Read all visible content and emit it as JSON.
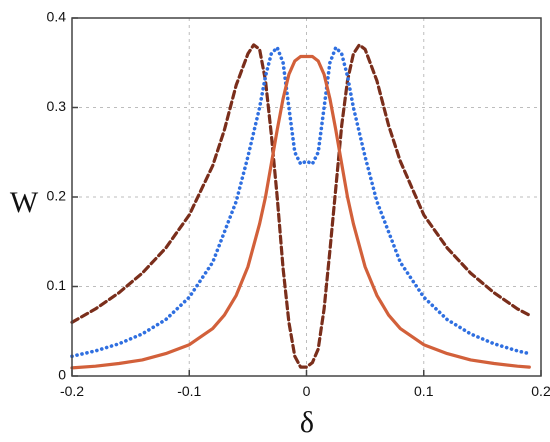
{
  "chart_data": {
    "type": "line",
    "title": "",
    "xlabel": "δ",
    "ylabel": "W",
    "xlim": [
      -0.2,
      0.2
    ],
    "ylim": [
      0,
      0.4
    ],
    "x_ticks": [
      -0.2,
      -0.1,
      0,
      0.1,
      0.2
    ],
    "x_tick_labels": [
      "-0.2",
      "-0.1",
      "0",
      "0.1",
      "0.2"
    ],
    "y_ticks": [
      0,
      0.1,
      0.2,
      0.3,
      0.4
    ],
    "y_tick_labels": [
      "0",
      "0.1",
      "0.2",
      "0.3",
      "0.4"
    ],
    "grid": true,
    "legend": "none",
    "series": [
      {
        "style": "dashed",
        "color": "#7a2e1b",
        "x": [
          -0.2,
          -0.18,
          -0.16,
          -0.14,
          -0.12,
          -0.1,
          -0.08,
          -0.07,
          -0.06,
          -0.05,
          -0.045,
          -0.04,
          -0.035,
          -0.03,
          -0.025,
          -0.02,
          -0.015,
          -0.01,
          -0.005,
          0,
          0.005,
          0.01,
          0.015,
          0.02,
          0.025,
          0.03,
          0.035,
          0.04,
          0.045,
          0.05,
          0.06,
          0.07,
          0.08,
          0.1,
          0.12,
          0.14,
          0.16,
          0.18,
          0.19
        ],
        "y": [
          0.06,
          0.075,
          0.093,
          0.115,
          0.143,
          0.18,
          0.235,
          0.275,
          0.325,
          0.36,
          0.37,
          0.365,
          0.33,
          0.27,
          0.2,
          0.12,
          0.06,
          0.022,
          0.01,
          0.01,
          0.015,
          0.03,
          0.075,
          0.14,
          0.21,
          0.28,
          0.33,
          0.36,
          0.37,
          0.365,
          0.33,
          0.28,
          0.24,
          0.18,
          0.143,
          0.115,
          0.093,
          0.075,
          0.068
        ]
      },
      {
        "style": "dotted",
        "color": "#2f6fe0",
        "x": [
          -0.2,
          -0.18,
          -0.16,
          -0.14,
          -0.12,
          -0.1,
          -0.08,
          -0.06,
          -0.05,
          -0.04,
          -0.035,
          -0.03,
          -0.025,
          -0.02,
          -0.015,
          -0.01,
          -0.005,
          0,
          0.005,
          0.01,
          0.015,
          0.02,
          0.025,
          0.03,
          0.035,
          0.04,
          0.05,
          0.06,
          0.08,
          0.1,
          0.12,
          0.14,
          0.16,
          0.18,
          0.19
        ],
        "y": [
          0.022,
          0.028,
          0.036,
          0.047,
          0.063,
          0.088,
          0.127,
          0.195,
          0.245,
          0.3,
          0.335,
          0.36,
          0.367,
          0.35,
          0.3,
          0.25,
          0.237,
          0.24,
          0.237,
          0.25,
          0.3,
          0.35,
          0.367,
          0.36,
          0.335,
          0.3,
          0.245,
          0.195,
          0.127,
          0.088,
          0.063,
          0.047,
          0.036,
          0.028,
          0.025
        ]
      },
      {
        "style": "solid",
        "color": "#d2603a",
        "x": [
          -0.2,
          -0.18,
          -0.16,
          -0.14,
          -0.12,
          -0.1,
          -0.08,
          -0.07,
          -0.06,
          -0.05,
          -0.04,
          -0.035,
          -0.03,
          -0.025,
          -0.02,
          -0.015,
          -0.01,
          -0.005,
          0,
          0.005,
          0.01,
          0.015,
          0.02,
          0.025,
          0.03,
          0.035,
          0.04,
          0.05,
          0.06,
          0.07,
          0.08,
          0.1,
          0.12,
          0.14,
          0.16,
          0.18,
          0.19
        ],
        "y": [
          0.009,
          0.011,
          0.014,
          0.018,
          0.025,
          0.035,
          0.053,
          0.068,
          0.09,
          0.122,
          0.17,
          0.2,
          0.237,
          0.275,
          0.31,
          0.337,
          0.352,
          0.357,
          0.357,
          0.357,
          0.352,
          0.337,
          0.31,
          0.275,
          0.237,
          0.2,
          0.17,
          0.122,
          0.09,
          0.068,
          0.053,
          0.035,
          0.025,
          0.018,
          0.014,
          0.011,
          0.01
        ]
      }
    ]
  }
}
